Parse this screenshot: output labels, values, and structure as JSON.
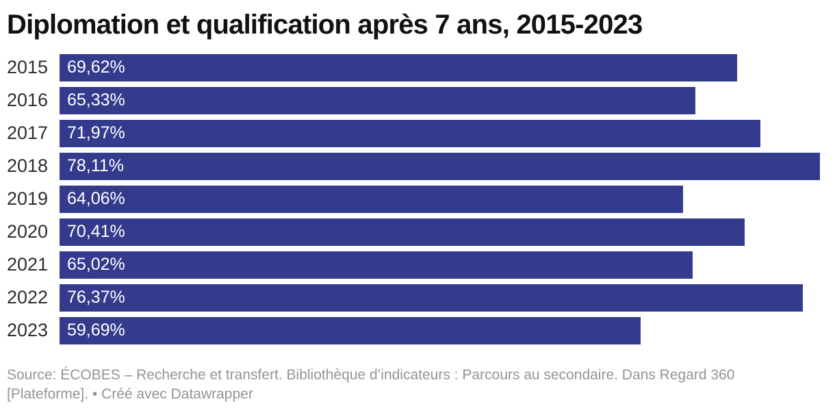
{
  "header": {
    "title": "Diplomation et qualification après 7 ans, 2015-2023"
  },
  "chart_data": {
    "type": "bar",
    "orientation": "horizontal",
    "title": "Diplomation et qualification après 7 ans, 2015-2023",
    "categories": [
      "2015",
      "2016",
      "2017",
      "2018",
      "2019",
      "2020",
      "2021",
      "2022",
      "2023"
    ],
    "values": [
      69.62,
      65.33,
      71.97,
      78.11,
      64.06,
      70.41,
      65.02,
      76.37,
      59.69
    ],
    "value_labels": [
      "69,62%",
      "65,33%",
      "71,97%",
      "78,11%",
      "64,06%",
      "70,41%",
      "65,02%",
      "76,37%",
      "59,69%"
    ],
    "xlabel": "",
    "ylabel": "",
    "xlim": [
      0,
      78.11
    ],
    "grid": false,
    "legend": "none",
    "bar_color": "#343b8d",
    "value_label_color": "#ffffff",
    "category_label_color": "#2e2e2e"
  },
  "footer": {
    "line1": "Source: ÉCOBES – Recherche et transfert. Bibliothèque d’indicateurs : Parcours au secondaire. Dans Regard 360",
    "line2": "[Plateforme]. • Créé avec Datawrapper"
  },
  "colors": {
    "bar": "#343b8d",
    "title_text": "#111111",
    "footer_text": "#949494",
    "background": "#ffffff"
  }
}
